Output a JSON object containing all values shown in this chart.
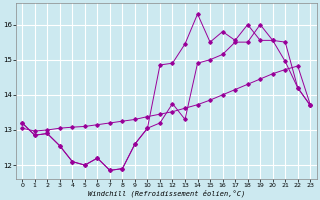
{
  "xlabel": "Windchill (Refroidissement éolien,°C)",
  "background_color": "#cce9f0",
  "grid_color": "#ffffff",
  "line_color": "#990099",
  "xlim": [
    -0.5,
    23.5
  ],
  "ylim": [
    11.6,
    16.6
  ],
  "yticks": [
    12,
    13,
    14,
    15,
    16
  ],
  "xticks": [
    0,
    1,
    2,
    3,
    4,
    5,
    6,
    7,
    8,
    9,
    10,
    11,
    12,
    13,
    14,
    15,
    16,
    17,
    18,
    19,
    20,
    21,
    22,
    23
  ],
  "series1_x": [
    0,
    1,
    2,
    3,
    4,
    5,
    6,
    7,
    8,
    9,
    10,
    11,
    12,
    13,
    14,
    15,
    16,
    17,
    18,
    19,
    20,
    21,
    22,
    23
  ],
  "series1_y": [
    13.2,
    12.85,
    12.9,
    12.55,
    12.1,
    12.0,
    12.2,
    11.85,
    11.9,
    12.6,
    13.05,
    13.2,
    13.75,
    13.3,
    14.9,
    15.0,
    15.15,
    15.5,
    15.5,
    16.0,
    15.55,
    14.95,
    14.2,
    13.7
  ],
  "series2_x": [
    0,
    1,
    2,
    3,
    4,
    5,
    6,
    7,
    8,
    9,
    10,
    11,
    12,
    13,
    14,
    15,
    16,
    17,
    18,
    19,
    20,
    21,
    22,
    23
  ],
  "series2_y": [
    13.05,
    12.97,
    13.0,
    13.05,
    13.08,
    13.1,
    13.15,
    13.2,
    13.25,
    13.3,
    13.38,
    13.45,
    13.52,
    13.62,
    13.72,
    13.85,
    14.0,
    14.15,
    14.3,
    14.45,
    14.6,
    14.72,
    14.82,
    13.72
  ],
  "series3_x": [
    0,
    1,
    2,
    3,
    4,
    5,
    6,
    7,
    8,
    9,
    10,
    11,
    12,
    13,
    14,
    15,
    16,
    17,
    18,
    19,
    20,
    21,
    22,
    23
  ],
  "series3_y": [
    13.2,
    12.85,
    12.9,
    12.55,
    12.1,
    12.0,
    12.2,
    11.85,
    11.9,
    12.6,
    13.05,
    14.85,
    14.9,
    15.45,
    16.3,
    15.5,
    15.8,
    15.55,
    16.0,
    15.55,
    15.55,
    15.5,
    14.2,
    13.7
  ]
}
